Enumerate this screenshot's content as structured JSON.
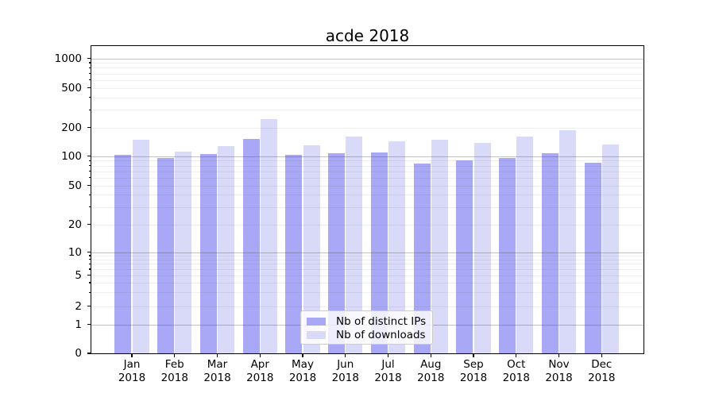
{
  "title": "acde 2018",
  "colors": {
    "distinct_ips_bar": "#a8a8f6",
    "downloads_bar": "#d9d9f8",
    "grid_major": "#bdbdbd",
    "grid_minor": "#ebebeb",
    "spine": "#000000",
    "legend_border": "#cccccc"
  },
  "chart_data": {
    "type": "bar",
    "title": "acde 2018",
    "xlabel": "",
    "ylabel": "",
    "yscale": "symlog",
    "ylim": [
      0,
      1365
    ],
    "grid": "both",
    "legend_position": "lower center",
    "y_ticks": [
      1000,
      500,
      200,
      100,
      50,
      20,
      10,
      5,
      2,
      1,
      0
    ],
    "categories": [
      {
        "month": "Jan",
        "year": "2018"
      },
      {
        "month": "Feb",
        "year": "2018"
      },
      {
        "month": "Mar",
        "year": "2018"
      },
      {
        "month": "Apr",
        "year": "2018"
      },
      {
        "month": "May",
        "year": "2018"
      },
      {
        "month": "Jun",
        "year": "2018"
      },
      {
        "month": "Jul",
        "year": "2018"
      },
      {
        "month": "Aug",
        "year": "2018"
      },
      {
        "month": "Sep",
        "year": "2018"
      },
      {
        "month": "Oct",
        "year": "2018"
      },
      {
        "month": "Nov",
        "year": "2018"
      },
      {
        "month": "Dec",
        "year": "2018"
      }
    ],
    "series": [
      {
        "name": "Nb of distinct IPs",
        "color": "#a8a8f6",
        "values": [
          103,
          95,
          105,
          152,
          104,
          107,
          110,
          84,
          90,
          96,
          107,
          85
        ]
      },
      {
        "name": "Nb of downloads",
        "color": "#d9d9f8",
        "values": [
          150,
          112,
          127,
          242,
          131,
          161,
          142,
          148,
          137,
          162,
          187,
          132
        ]
      }
    ]
  }
}
